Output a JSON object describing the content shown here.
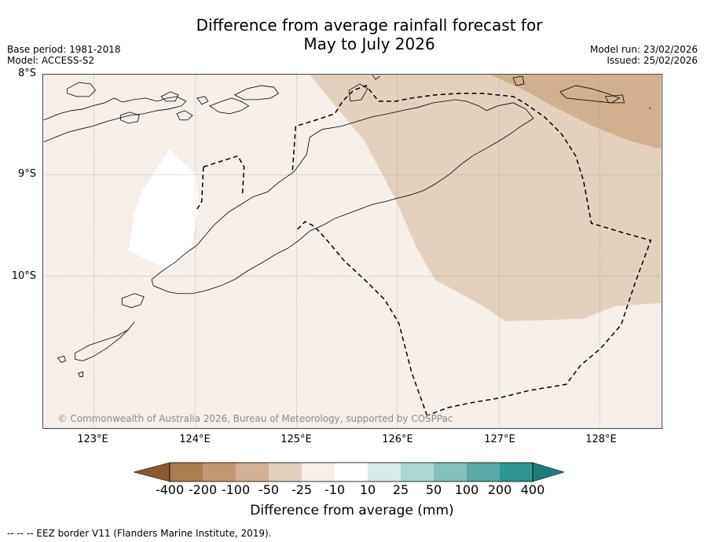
{
  "title": {
    "line1": "Difference from average rainfall forecast for",
    "line2": "May to July 2026"
  },
  "meta": {
    "base_period": "Base period: 1981-2018",
    "model": "Model: ACCESS-S2",
    "model_run": "Model run: 23/02/2026",
    "issued": "Issued: 25/02/2026"
  },
  "axes": {
    "lat_labels": [
      "8°S",
      "9°S",
      "10°S"
    ],
    "lon_labels": [
      "123°E",
      "124°E",
      "125°E",
      "126°E",
      "127°E",
      "128°E"
    ]
  },
  "map": {
    "copyright": "© Commonwealth of Australia 2026, Bureau of Meteorology, supported by COSPPac",
    "colors": {
      "base": "#f5eee9",
      "light_tan": "#e3d0bf",
      "mid_tan": "#d1b08f",
      "no_data": "#ffffff",
      "coastline": "#000000",
      "eez": "#000000"
    }
  },
  "legend": {
    "labels": [
      "-400",
      "-200",
      "-100",
      "-50",
      "-25",
      "-10",
      "10",
      "25",
      "50",
      "100",
      "200",
      "400"
    ],
    "colors": [
      "#8a5a2c",
      "#ad7d4e",
      "#c29870",
      "#d2b193",
      "#e3cfbe",
      "#f5eee9",
      "#ffffff",
      "#d6ebe8",
      "#acd8d4",
      "#83c1bd",
      "#5aa9a6",
      "#2e9794",
      "#1e7c7a"
    ],
    "title": "Difference from average (mm)"
  },
  "footer": {
    "eez_note": "--  --  -- EEZ border V11 (Flanders Marine Institute, 2019)."
  }
}
